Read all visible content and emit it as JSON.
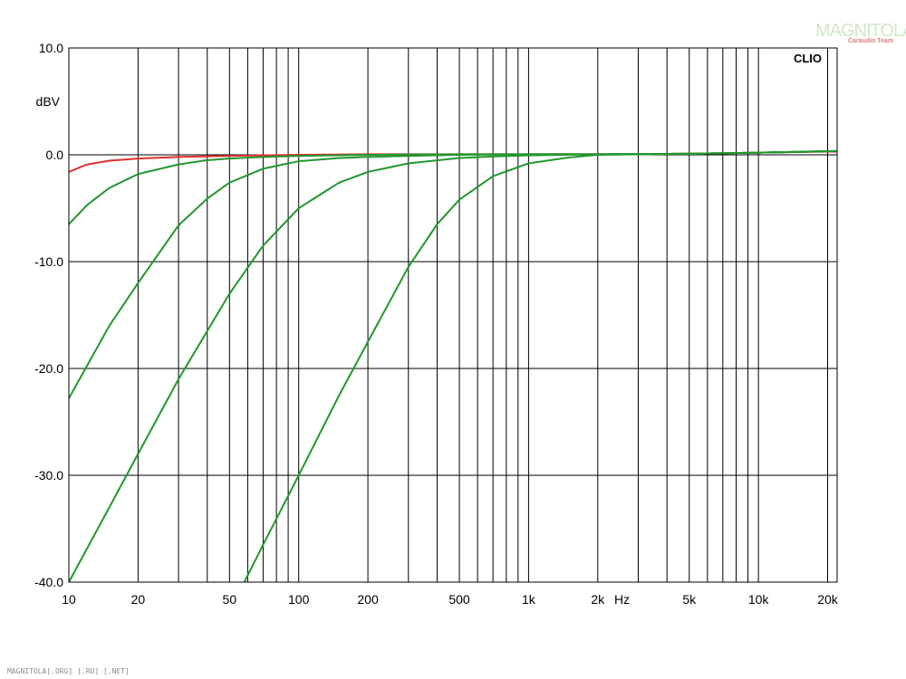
{
  "watermark": {
    "main": "MAGNITOLA",
    "sub": "Caraudio Team"
  },
  "footer": "MAGNITOLA[.ORG] [.RU] [.NET]",
  "chart_data": {
    "type": "line",
    "brand_label": "CLIO",
    "ylabel": "dBV",
    "xlabel": "Hz",
    "xscale": "log",
    "xlim": [
      10,
      22000
    ],
    "ylim": [
      -40,
      10
    ],
    "grid": true,
    "y_ticks": [
      10,
      0,
      -10,
      -20,
      -30,
      -40
    ],
    "y_tick_labels": [
      "10.0",
      "0.0",
      "-10.0",
      "-20.0",
      "-30.0",
      "-40.0"
    ],
    "x_ticks": [
      10,
      20,
      50,
      100,
      200,
      500,
      1000,
      2000,
      5000,
      10000,
      20000
    ],
    "x_tick_labels": [
      "10",
      "20",
      "50",
      "100",
      "200",
      "500",
      "1k",
      "2k",
      "5k",
      "10k",
      "20k"
    ],
    "x_gridlines": [
      10,
      20,
      30,
      40,
      50,
      60,
      70,
      80,
      90,
      100,
      200,
      300,
      400,
      500,
      600,
      700,
      800,
      900,
      1000,
      2000,
      3000,
      4000,
      5000,
      6000,
      7000,
      8000,
      9000,
      10000,
      20000
    ],
    "series": [
      {
        "color": "#e03030",
        "x": [
          10,
          12,
          15,
          20,
          30,
          50,
          70,
          100,
          200,
          500,
          1000,
          2000,
          5000,
          10000,
          20000,
          22000
        ],
        "y": [
          -1.6,
          -0.9,
          -0.55,
          -0.35,
          -0.2,
          -0.1,
          -0.05,
          0.0,
          0.05,
          0.05,
          0.05,
          0.05,
          0.1,
          0.2,
          0.3,
          0.3
        ]
      },
      {
        "color": "#22962e",
        "x": [
          10,
          12,
          15,
          20,
          30,
          40,
          50,
          70,
          100,
          200,
          500,
          1000,
          2000,
          5000,
          10000,
          20000,
          22000
        ],
        "y": [
          -6.5,
          -4.7,
          -3.1,
          -1.8,
          -0.9,
          -0.5,
          -0.35,
          -0.2,
          -0.1,
          0.0,
          0.05,
          0.05,
          0.05,
          0.1,
          0.2,
          0.35,
          0.35
        ]
      },
      {
        "color": "#22962e",
        "x": [
          10,
          15,
          20,
          30,
          40,
          50,
          70,
          100,
          150,
          200,
          300,
          500,
          1000,
          2000,
          5000,
          10000,
          22000
        ],
        "y": [
          -22.8,
          -16.0,
          -12.0,
          -6.6,
          -4.1,
          -2.6,
          -1.3,
          -0.6,
          -0.3,
          -0.2,
          -0.1,
          0.0,
          0.05,
          0.05,
          0.1,
          0.2,
          0.35
        ]
      },
      {
        "color": "#22962e",
        "x": [
          10,
          15,
          20,
          30,
          50,
          70,
          100,
          150,
          200,
          300,
          500,
          700,
          1000,
          2000,
          5000,
          10000,
          22000
        ],
        "y": [
          -40.0,
          -33.0,
          -28.0,
          -21.0,
          -13.0,
          -8.5,
          -5.0,
          -2.6,
          -1.6,
          -0.8,
          -0.3,
          -0.15,
          -0.05,
          0.05,
          0.1,
          0.2,
          0.35
        ]
      },
      {
        "color": "#22962e",
        "x": [
          58,
          70,
          100,
          150,
          200,
          300,
          400,
          500,
          700,
          1000,
          1500,
          2000,
          5000,
          10000,
          22000
        ],
        "y": [
          -40.0,
          -36.5,
          -30.0,
          -22.5,
          -17.5,
          -10.5,
          -6.5,
          -4.2,
          -2.0,
          -0.8,
          -0.25,
          0.0,
          0.1,
          0.2,
          0.35
        ]
      }
    ]
  }
}
